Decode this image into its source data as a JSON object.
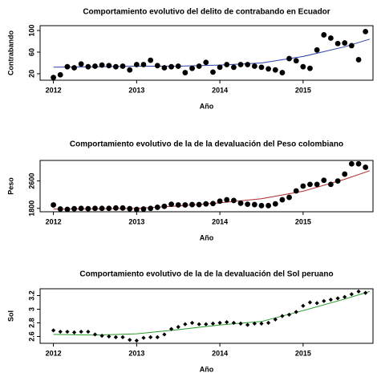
{
  "chart_data": [
    {
      "type": "scatter",
      "title": "Comportamiento evolutivo del delito de contrabando en Ecuador",
      "xlabel": "Año",
      "ylabel": "Contrabando",
      "x": [
        2012,
        2012.083,
        2012.167,
        2012.25,
        2012.333,
        2012.417,
        2012.5,
        2012.583,
        2012.667,
        2012.75,
        2012.833,
        2012.917,
        2013,
        2013.083,
        2013.167,
        2013.25,
        2013.333,
        2013.417,
        2013.5,
        2013.583,
        2013.667,
        2013.75,
        2013.833,
        2013.917,
        2014,
        2014.083,
        2014.167,
        2014.25,
        2014.333,
        2014.417,
        2014.5,
        2014.583,
        2014.667,
        2014.75,
        2014.833,
        2014.917,
        2015,
        2015.083,
        2015.167,
        2015.25,
        2015.333,
        2015.417,
        2015.5,
        2015.583,
        2015.667,
        2015.75
      ],
      "values": [
        13,
        18,
        33,
        31,
        38,
        33,
        34,
        36,
        35,
        33,
        34,
        27,
        37,
        37,
        45,
        35,
        31,
        33,
        34,
        22,
        30,
        34,
        41,
        23,
        32,
        37,
        32,
        37,
        37,
        34,
        32,
        29,
        27,
        22,
        48,
        44,
        33,
        30,
        64,
        92,
        86,
        76,
        77,
        72,
        46,
        98
      ],
      "color": "#000000",
      "marker": "circle",
      "trend_x": [
        2012,
        2012.5,
        2013,
        2013.5,
        2014,
        2014.5,
        2015,
        2015.5,
        2015.8
      ],
      "trend_values": [
        32,
        33,
        34,
        34,
        36,
        40,
        52,
        70,
        84
      ],
      "trend_color": "#2b3fa8",
      "xlim": [
        2011.84,
        2015.84
      ],
      "xticks": [
        2012,
        2013,
        2014,
        2015
      ],
      "ylim": [
        8,
        109
      ],
      "yticks": [
        20,
        60,
        100
      ]
    },
    {
      "type": "scatter",
      "title": "Comportamiento evolutivo de la de la devaluación del Peso colombiano",
      "xlabel": "Año",
      "ylabel": "Peso",
      "x": [
        2012,
        2012.083,
        2012.167,
        2012.25,
        2012.333,
        2012.417,
        2012.5,
        2012.583,
        2012.667,
        2012.75,
        2012.833,
        2012.917,
        2013,
        2013.083,
        2013.167,
        2013.25,
        2013.333,
        2013.417,
        2013.5,
        2013.583,
        2013.667,
        2013.75,
        2013.833,
        2013.917,
        2014,
        2014.083,
        2014.167,
        2014.25,
        2014.333,
        2014.417,
        2014.5,
        2014.583,
        2014.667,
        2014.75,
        2014.833,
        2014.917,
        2015,
        2015.083,
        2015.167,
        2015.25,
        2015.333,
        2015.417,
        2015.5,
        2015.583,
        2015.667,
        2015.75
      ],
      "values": [
        1900,
        1780,
        1770,
        1790,
        1800,
        1790,
        1800,
        1800,
        1800,
        1810,
        1810,
        1790,
        1770,
        1780,
        1800,
        1830,
        1860,
        1920,
        1900,
        1900,
        1910,
        1910,
        1930,
        1940,
        2010,
        2050,
        2030,
        1950,
        1920,
        1910,
        1880,
        1880,
        1930,
        2050,
        2120,
        2310,
        2450,
        2500,
        2500,
        2620,
        2500,
        2600,
        2800,
        3100,
        3100,
        3000
      ],
      "color": "#000000",
      "marker": "circle",
      "trend_x": [
        2012,
        2012.5,
        2013,
        2013.5,
        2014,
        2014.5,
        2015,
        2015.5,
        2015.8
      ],
      "trend_values": [
        1780,
        1785,
        1800,
        1870,
        1960,
        2080,
        2300,
        2650,
        2900
      ],
      "trend_color": "#b02a2a",
      "xlim": [
        2011.84,
        2015.84
      ],
      "xticks": [
        2012,
        2013,
        2014,
        2015
      ],
      "ylim": [
        1700,
        3200
      ],
      "yticks": [
        1800,
        2600
      ]
    },
    {
      "type": "scatter",
      "title": "Comportamiento evolutivo de la de la devaluación del Sol peruano",
      "xlabel": "Año",
      "ylabel": "Sol",
      "x": [
        2012,
        2012.083,
        2012.167,
        2012.25,
        2012.333,
        2012.417,
        2012.5,
        2012.583,
        2012.667,
        2012.75,
        2012.833,
        2012.917,
        2013,
        2013.083,
        2013.167,
        2013.25,
        2013.333,
        2013.417,
        2013.5,
        2013.583,
        2013.667,
        2013.75,
        2013.833,
        2013.917,
        2014,
        2014.083,
        2014.167,
        2014.25,
        2014.333,
        2014.417,
        2014.5,
        2014.583,
        2014.667,
        2014.75,
        2014.833,
        2014.917,
        2015,
        2015.083,
        2015.167,
        2015.25,
        2015.333,
        2015.417,
        2015.5,
        2015.583,
        2015.667,
        2015.75
      ],
      "values": [
        2.69,
        2.67,
        2.67,
        2.66,
        2.67,
        2.67,
        2.63,
        2.61,
        2.6,
        2.59,
        2.59,
        2.55,
        2.54,
        2.58,
        2.59,
        2.59,
        2.63,
        2.71,
        2.74,
        2.78,
        2.8,
        2.78,
        2.78,
        2.79,
        2.8,
        2.81,
        2.8,
        2.79,
        2.77,
        2.79,
        2.79,
        2.8,
        2.85,
        2.9,
        2.92,
        2.96,
        3.05,
        3.1,
        3.09,
        3.12,
        3.14,
        3.16,
        3.18,
        3.22,
        3.26,
        3.24
      ],
      "color": "#000000",
      "marker": "diamond",
      "trend_x": [
        2012,
        2012.5,
        2013,
        2013.5,
        2014,
        2014.5,
        2015,
        2015.5,
        2015.8
      ],
      "trend_values": [
        2.63,
        2.62,
        2.64,
        2.7,
        2.77,
        2.82,
        2.98,
        3.15,
        3.26
      ],
      "trend_color": "#2a9a2a",
      "xlim": [
        2011.84,
        2015.84
      ],
      "xticks": [
        2012,
        2013,
        2014,
        2015
      ],
      "ylim": [
        2.5,
        3.3
      ],
      "yticks": [
        2.6,
        2.8,
        3.0,
        3.2
      ]
    }
  ]
}
